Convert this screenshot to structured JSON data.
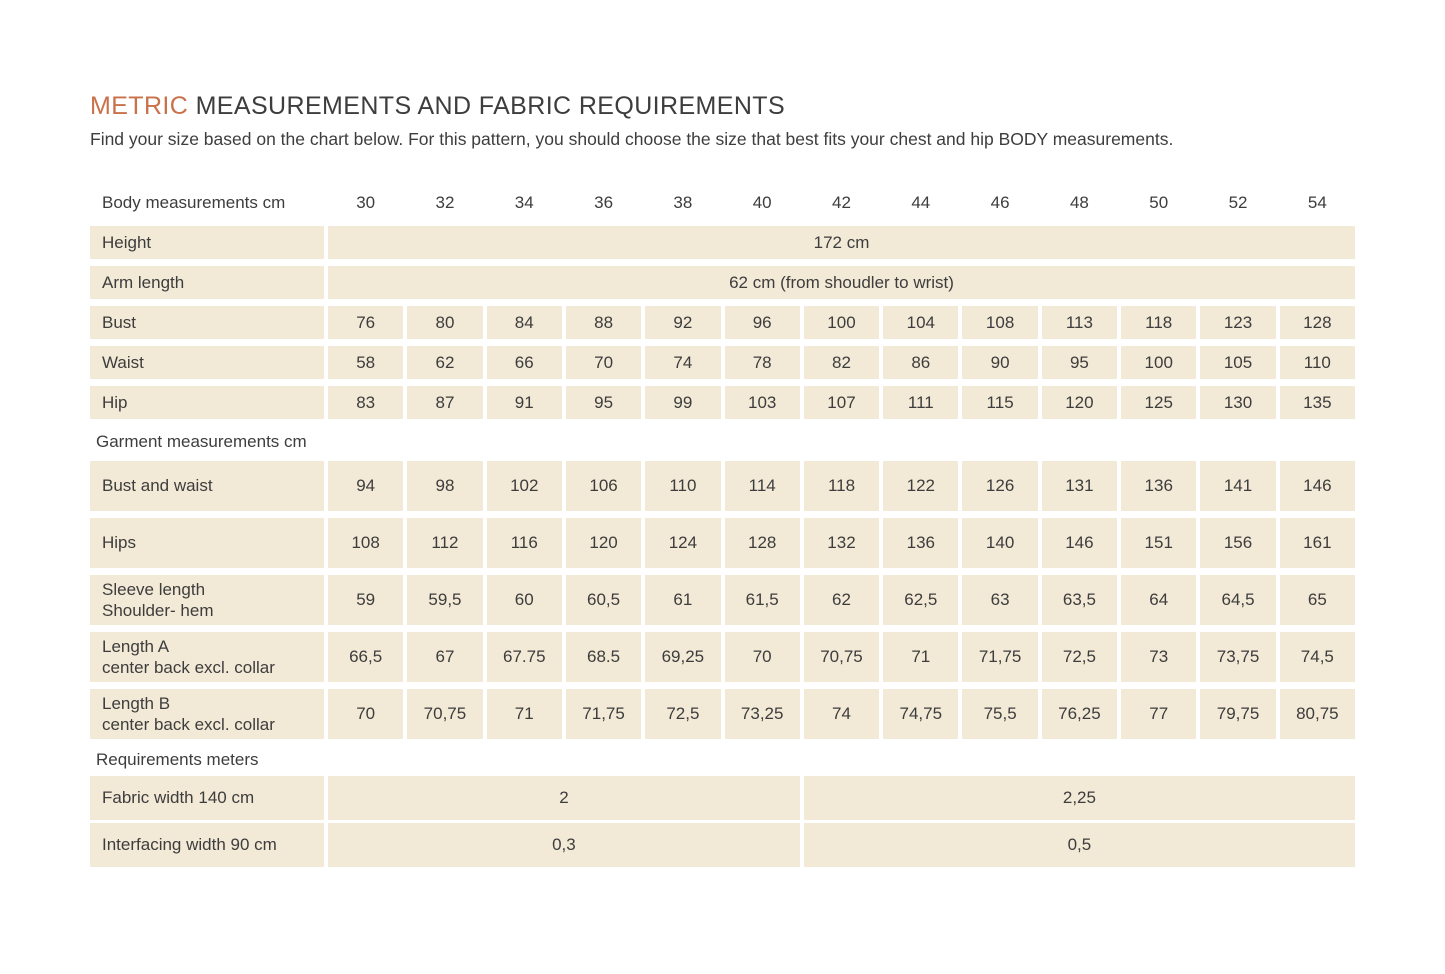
{
  "page": {
    "title_accent": "METRIC",
    "title_rest": " MEASUREMENTS AND FABRIC REQUIREMENTS",
    "subtitle": "Find your size based on the chart below. For this pattern, you should choose the size that best fits your chest and hip BODY measurements."
  },
  "colors": {
    "accent": "#c8714a",
    "cell_background": "#f2e9d6",
    "text": "#3d3d3d",
    "page_background": "#ffffff"
  },
  "table": {
    "header": {
      "label": "Body measurements cm",
      "sizes": [
        "30",
        "32",
        "34",
        "36",
        "38",
        "40",
        "42",
        "44",
        "46",
        "48",
        "50",
        "52",
        "54"
      ]
    },
    "body_rows": [
      {
        "label": "Height",
        "type": "merged",
        "value": "172 cm"
      },
      {
        "label": "Arm length",
        "type": "merged",
        "value": "62 cm (from shoudler to wrist)"
      },
      {
        "label": "Bust",
        "type": "cells",
        "values": [
          "76",
          "80",
          "84",
          "88",
          "92",
          "96",
          "100",
          "104",
          "108",
          "113",
          "118",
          "123",
          "128"
        ]
      },
      {
        "label": "Waist",
        "type": "cells",
        "values": [
          "58",
          "62",
          "66",
          "70",
          "74",
          "78",
          "82",
          "86",
          "90",
          "95",
          "100",
          "105",
          "110"
        ]
      },
      {
        "label": "Hip",
        "type": "cells",
        "values": [
          "83",
          "87",
          "91",
          "95",
          "99",
          "103",
          "107",
          "111",
          "115",
          "120",
          "125",
          "130",
          "135"
        ]
      }
    ],
    "garment_section_label": "Garment measurements cm",
    "garment_rows": [
      {
        "label": "Bust and waist",
        "label2": "",
        "values": [
          "94",
          "98",
          "102",
          "106",
          "110",
          "114",
          "118",
          "122",
          "126",
          "131",
          "136",
          "141",
          "146"
        ]
      },
      {
        "label": "Hips",
        "label2": "",
        "values": [
          "108",
          "112",
          "116",
          "120",
          "124",
          "128",
          "132",
          "136",
          "140",
          "146",
          "151",
          "156",
          "161"
        ]
      },
      {
        "label": "Sleeve length",
        "label2": "Shoulder- hem",
        "values": [
          "59",
          "59,5",
          "60",
          "60,5",
          "61",
          "61,5",
          "62",
          "62,5",
          "63",
          "63,5",
          "64",
          "64,5",
          "65"
        ]
      },
      {
        "label": "Length A",
        "label2": "center back excl. collar",
        "values": [
          "66,5",
          "67",
          "67.75",
          "68.5",
          "69,25",
          "70",
          "70,75",
          "71",
          "71,75",
          "72,5",
          "73",
          "73,75",
          "74,5"
        ]
      },
      {
        "label": "Length B",
        "label2": "center back excl. collar",
        "values": [
          "70",
          "70,75",
          "71",
          "71,75",
          "72,5",
          "73,25",
          "74",
          "74,75",
          "75,5",
          "76,25",
          "77",
          "79,75",
          "80,75"
        ]
      }
    ],
    "requirements_section_label": "Requirements meters",
    "requirements_rows": [
      {
        "label": "Fabric width 140 cm",
        "left_value": "2",
        "right_value": "2,25"
      },
      {
        "label": "Interfacing width 90 cm",
        "left_value": "0,3",
        "right_value": "0,5"
      }
    ]
  }
}
